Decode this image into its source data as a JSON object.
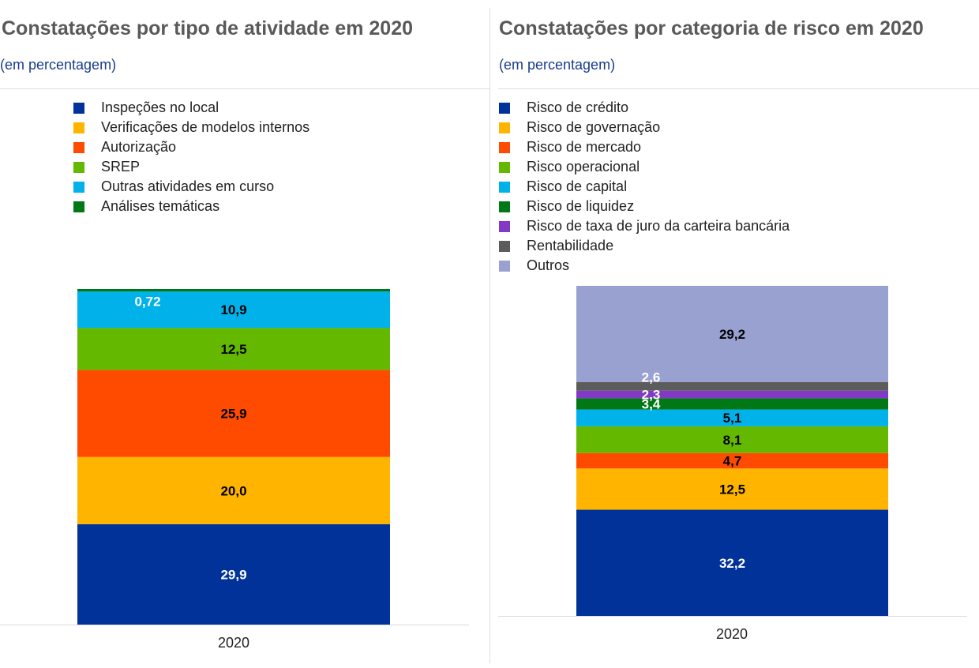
{
  "left_panel": {
    "title": "Constatações por tipo de atividade em 2020",
    "subtitle": "(em percentagem)"
  },
  "right_panel": {
    "title": "Constatações por categoria de risco em 2020",
    "subtitle": "(em percentagem)"
  },
  "chart_data": [
    {
      "type": "bar",
      "stacked": true,
      "title": "Constatações por tipo de atividade em 2020",
      "subtitle": "(em percentagem)",
      "categories": [
        "2020"
      ],
      "ylim": [
        0,
        100
      ],
      "series": [
        {
          "name": "Inspeções no local",
          "values": [
            29.9
          ],
          "label": "29,9",
          "color": "#003299",
          "label_color": "#ffffff"
        },
        {
          "name": "Verificações de modelos internos",
          "values": [
            20.0
          ],
          "label": "20,0",
          "color": "#ffb400",
          "label_color": "#000000"
        },
        {
          "name": "Autorização",
          "values": [
            25.9
          ],
          "label": "25,9",
          "color": "#ff4b00",
          "label_color": "#000000"
        },
        {
          "name": "SREP",
          "values": [
            12.5
          ],
          "label": "12,5",
          "color": "#65b800",
          "label_color": "#000000"
        },
        {
          "name": "Outras atividades em curso",
          "values": [
            10.9
          ],
          "label": "10,9",
          "color": "#00b1ea",
          "label_color": "#000000"
        },
        {
          "name": "Análises temáticas",
          "values": [
            0.72
          ],
          "label": "0,72",
          "color": "#007816",
          "label_color": "#ffffff"
        }
      ]
    },
    {
      "type": "bar",
      "stacked": true,
      "title": "Constatações por categoria de risco em 2020",
      "subtitle": "(em percentagem)",
      "categories": [
        "2020"
      ],
      "ylim": [
        0,
        100
      ],
      "series": [
        {
          "name": "Risco de crédito",
          "values": [
            32.2
          ],
          "label": "32,2",
          "color": "#003299",
          "label_color": "#ffffff"
        },
        {
          "name": "Risco de governação",
          "values": [
            12.5
          ],
          "label": "12,5",
          "color": "#ffb400",
          "label_color": "#000000"
        },
        {
          "name": "Risco de mercado",
          "values": [
            4.7
          ],
          "label": "4,7",
          "color": "#ff4b00",
          "label_color": "#000000"
        },
        {
          "name": "Risco operacional",
          "values": [
            8.1
          ],
          "label": "8,1",
          "color": "#65b800",
          "label_color": "#000000"
        },
        {
          "name": "Risco de capital",
          "values": [
            5.1
          ],
          "label": "5,1",
          "color": "#00b1ea",
          "label_color": "#000000"
        },
        {
          "name": "Risco de liquidez",
          "values": [
            3.4
          ],
          "label": "3,4",
          "color": "#007816",
          "label_color": "#ffffff"
        },
        {
          "name": "Risco de taxa de juro da carteira bancária",
          "values": [
            2.3
          ],
          "label": "2,3",
          "color": "#8139c6",
          "label_color": "#ffffff"
        },
        {
          "name": "Rentabilidade",
          "values": [
            2.6
          ],
          "label": "2,6",
          "color": "#5c5c5c",
          "label_color": "#ffffff"
        },
        {
          "name": "Outros",
          "values": [
            29.2
          ],
          "label": "29,2",
          "color": "#98a1d0",
          "label_color": "#000000"
        }
      ]
    }
  ]
}
